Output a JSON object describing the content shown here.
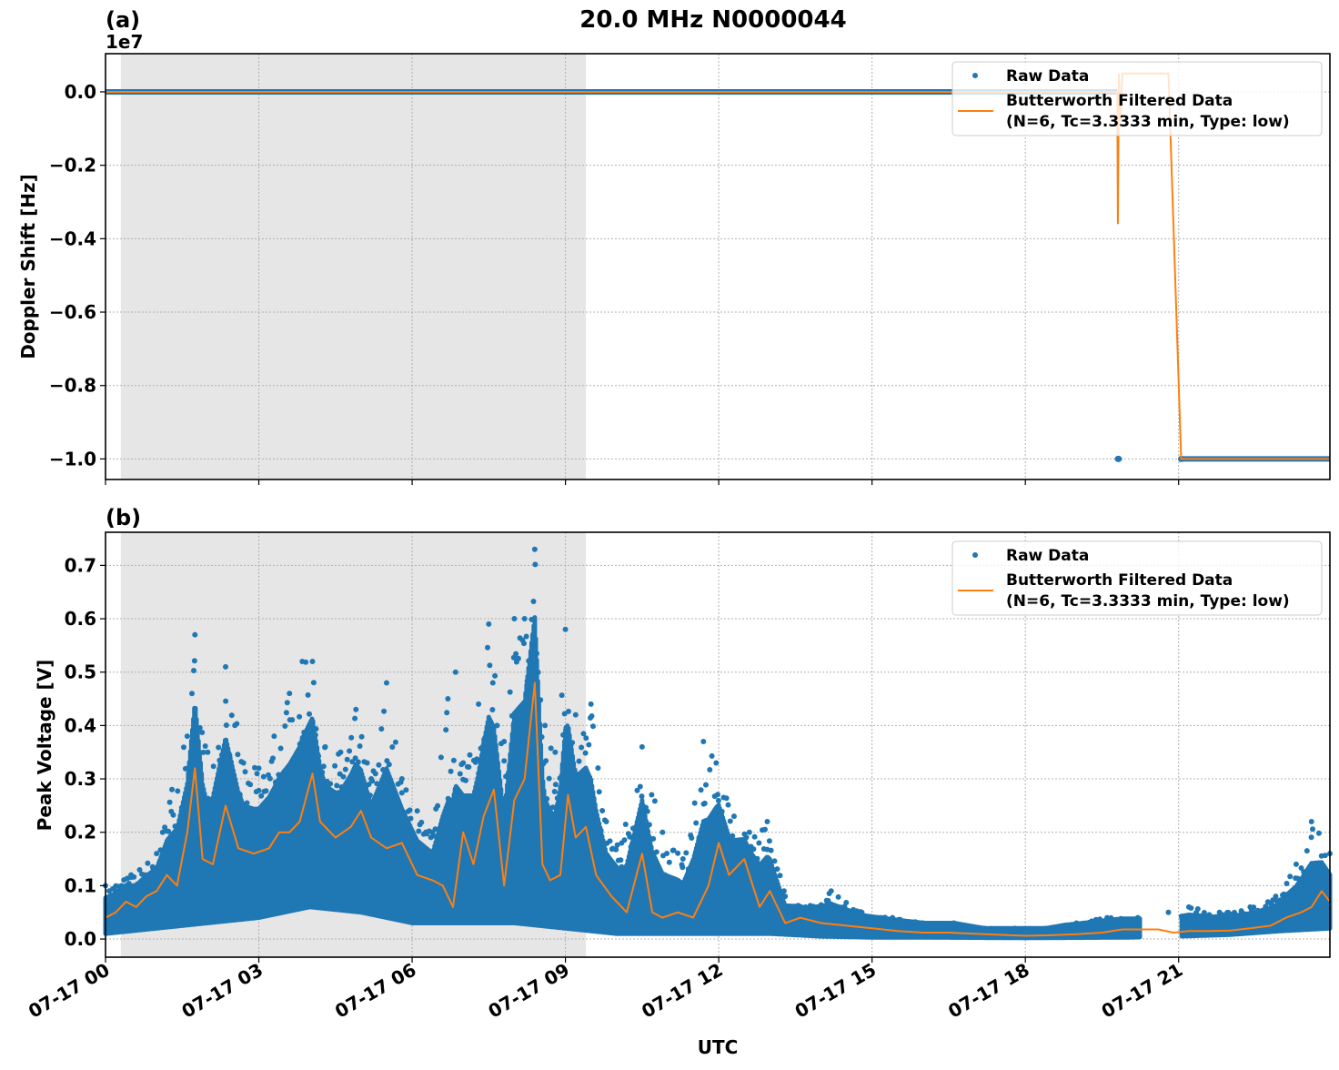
{
  "figure": {
    "title": "20.0 MHz N0000044",
    "xlabel": "UTC",
    "xtick_labels": [
      "07-17 00",
      "07-17 03",
      "07-17 06",
      "07-17 09",
      "07-17 12",
      "07-17 15",
      "07-17 18",
      "07-17 21"
    ],
    "shaded_region_hours": [
      0.3,
      9.4
    ],
    "colors": {
      "raw": "#1f77b4",
      "filtered": "#ff7f0e",
      "shade": "#e6e6e6"
    }
  },
  "panels": [
    {
      "label": "(a)",
      "ylabel": "Doppler Shift [Hz]",
      "offset_text": "1e7",
      "ytick_labels": [
        "0.0",
        "−0.2",
        "−0.4",
        "−0.6",
        "−0.8",
        "−1.0"
      ],
      "legend": {
        "raw": "Raw Data",
        "filtered_line1": "Butterworth Filtered Data",
        "filtered_line2": "(N=6, Tc=3.3333 min, Type: low)"
      }
    },
    {
      "label": "(b)",
      "ylabel": "Peak Voltage [V]",
      "ytick_labels": [
        "0.0",
        "0.1",
        "0.2",
        "0.3",
        "0.4",
        "0.5",
        "0.6",
        "0.7"
      ],
      "legend": {
        "raw": "Raw Data",
        "filtered_line1": "Butterworth Filtered Data",
        "filtered_line2": "(N=6, Tc=3.3333 min, Type: low)"
      }
    }
  ],
  "chart_data": [
    {
      "type": "line",
      "title": "20.0 MHz N0000044",
      "subplot": "(a)",
      "xlabel": "",
      "ylabel": "Doppler Shift [Hz]",
      "y_scale_offset": "1e7",
      "ylim": [
        -1.056,
        0.104
      ],
      "xlim_hours": [
        0,
        23.96
      ],
      "grid": true,
      "legend_position": "upper right",
      "series": [
        {
          "name": "Raw Data",
          "style": "scatter",
          "x_hours": [
            0,
            19.8,
            19.8,
            19.83,
            21.05,
            23.96
          ],
          "values": [
            0.0,
            0.0,
            -1.0,
            -1.0,
            -1.0,
            -1.0
          ]
        },
        {
          "name": "Butterworth Filtered Data (N=6, Tc=3.3333 min, Type: low)",
          "style": "line",
          "x_hours": [
            0,
            19.8,
            19.81,
            19.83,
            19.86,
            19.9,
            20.8,
            21.05,
            23.96
          ],
          "values": [
            0.0,
            0.0,
            -0.36,
            0.05,
            -0.08,
            0.05,
            0.05,
            -1.0,
            -1.0
          ]
        }
      ],
      "annotations": [
        "shaded interval 00:18–09:24 UTC"
      ]
    },
    {
      "type": "line",
      "subplot": "(b)",
      "xlabel": "UTC",
      "ylabel": "Peak Voltage [V]",
      "ylim": [
        -0.034,
        0.762
      ],
      "xlim_hours": [
        0,
        23.96
      ],
      "x_tick_labels": [
        "07-17 00",
        "07-17 03",
        "07-17 06",
        "07-17 09",
        "07-17 12",
        "07-17 15",
        "07-17 18",
        "07-17 21"
      ],
      "grid": true,
      "legend_position": "upper right",
      "series": [
        {
          "name": "Raw Data (upper envelope)",
          "style": "scatter",
          "x_hours": [
            0,
            0.5,
            1,
            1.3,
            1.6,
            1.75,
            2,
            2.35,
            2.7,
            3,
            3.3,
            3.6,
            3.85,
            4.05,
            4.3,
            4.6,
            4.9,
            5.2,
            5.5,
            5.8,
            6.1,
            6.4,
            6.7,
            6.85,
            7,
            7.3,
            7.5,
            7.8,
            8,
            8.2,
            8.4,
            8.6,
            8.8,
            9,
            9.2,
            9.5,
            9.8,
            10.1,
            10.5,
            10.9,
            11.3,
            11.7,
            11.95,
            12.3,
            12.6,
            12.95,
            13.3,
            13.7,
            14.2,
            14.8,
            15.4,
            16,
            16.6,
            17.2,
            17.8,
            18.4,
            19,
            19.6,
            20.2,
            20.8,
            21.2,
            21.8,
            22.4,
            22.9,
            23.3,
            23.6,
            23.96
          ],
          "values": [
            0.1,
            0.12,
            0.16,
            0.28,
            0.38,
            0.57,
            0.35,
            0.51,
            0.33,
            0.32,
            0.38,
            0.46,
            0.52,
            0.52,
            0.36,
            0.35,
            0.43,
            0.3,
            0.48,
            0.3,
            0.24,
            0.2,
            0.45,
            0.5,
            0.33,
            0.44,
            0.59,
            0.37,
            0.6,
            0.6,
            0.73,
            0.4,
            0.35,
            0.58,
            0.42,
            0.44,
            0.22,
            0.18,
            0.36,
            0.2,
            0.15,
            0.37,
            0.33,
            0.23,
            0.2,
            0.22,
            0.08,
            0.06,
            0.09,
            0.05,
            0.04,
            0.03,
            0.03,
            0.02,
            0.02,
            0.02,
            0.03,
            0.04,
            0.04,
            0.05,
            0.06,
            0.05,
            0.06,
            0.08,
            0.14,
            0.22,
            0.16
          ]
        },
        {
          "name": "Raw Data (lower envelope)",
          "style": "scatter",
          "x_hours": [
            0,
            1,
            2,
            3,
            4,
            5,
            6,
            7,
            8,
            9,
            10,
            11,
            12,
            13,
            14,
            15,
            16,
            18,
            20,
            21,
            22,
            23,
            23.96
          ],
          "values": [
            0.01,
            0.02,
            0.03,
            0.04,
            0.06,
            0.05,
            0.03,
            0.03,
            0.03,
            0.02,
            0.01,
            0.01,
            0.01,
            0.01,
            0.005,
            0.003,
            0.003,
            0.002,
            0.003,
            0.005,
            0.008,
            0.015,
            0.02
          ]
        },
        {
          "name": "Butterworth Filtered Data (N=6, Tc=3.3333 min, Type: low)",
          "style": "line",
          "x_hours": [
            0,
            0.2,
            0.4,
            0.6,
            0.8,
            1,
            1.2,
            1.4,
            1.6,
            1.75,
            1.9,
            2.1,
            2.35,
            2.6,
            2.9,
            3.2,
            3.4,
            3.6,
            3.8,
            4.05,
            4.2,
            4.5,
            4.8,
            5.0,
            5.2,
            5.5,
            5.8,
            6.1,
            6.4,
            6.6,
            6.8,
            7.0,
            7.2,
            7.4,
            7.6,
            7.8,
            8.0,
            8.2,
            8.4,
            8.55,
            8.7,
            8.9,
            9.05,
            9.2,
            9.4,
            9.6,
            9.9,
            10.2,
            10.5,
            10.7,
            10.9,
            11.2,
            11.5,
            11.8,
            12.0,
            12.2,
            12.5,
            12.8,
            13.0,
            13.3,
            13.6,
            14.0,
            14.5,
            15,
            15.5,
            16,
            16.5,
            17,
            17.5,
            18,
            18.5,
            19,
            19.5,
            19.9,
            20.1,
            20.6,
            20.9,
            21.2,
            21.6,
            22,
            22.4,
            22.8,
            23.1,
            23.4,
            23.6,
            23.8,
            23.96
          ],
          "values": [
            0.04,
            0.05,
            0.07,
            0.06,
            0.08,
            0.09,
            0.12,
            0.1,
            0.2,
            0.32,
            0.15,
            0.14,
            0.25,
            0.17,
            0.16,
            0.17,
            0.2,
            0.2,
            0.22,
            0.31,
            0.22,
            0.19,
            0.21,
            0.24,
            0.19,
            0.17,
            0.18,
            0.12,
            0.11,
            0.1,
            0.06,
            0.2,
            0.14,
            0.23,
            0.28,
            0.1,
            0.26,
            0.3,
            0.48,
            0.14,
            0.11,
            0.12,
            0.27,
            0.19,
            0.21,
            0.12,
            0.08,
            0.05,
            0.16,
            0.05,
            0.04,
            0.05,
            0.04,
            0.1,
            0.18,
            0.12,
            0.15,
            0.06,
            0.09,
            0.03,
            0.04,
            0.03,
            0.025,
            0.02,
            0.015,
            0.012,
            0.012,
            0.01,
            0.008,
            0.006,
            0.007,
            0.009,
            0.012,
            0.018,
            0.018,
            0.018,
            0.012,
            0.015,
            0.015,
            0.016,
            0.02,
            0.025,
            0.04,
            0.05,
            0.06,
            0.09,
            0.07
          ]
        }
      ],
      "annotations": [
        "shaded interval 00:18–09:24 UTC",
        "filtered line flat ~0.018 V between ~20:15 and ~21:05 (raw data gap)"
      ]
    }
  ]
}
